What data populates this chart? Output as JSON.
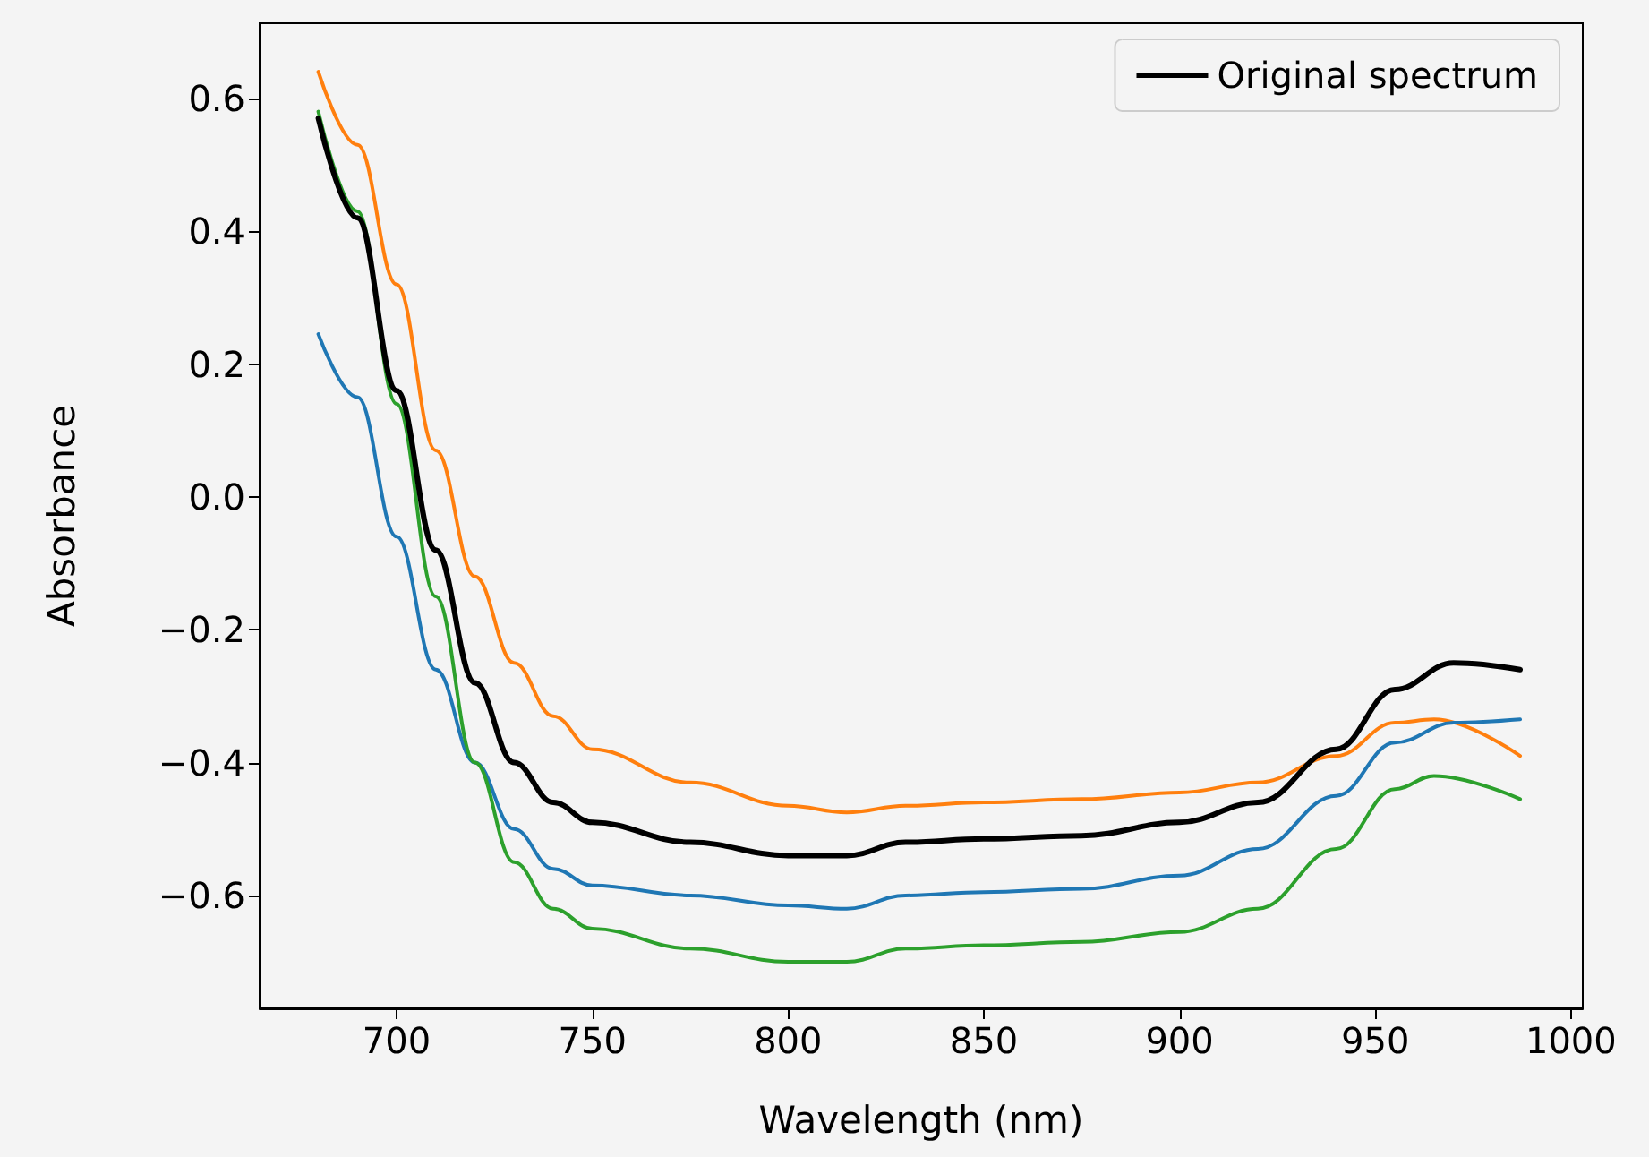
{
  "chart_data": {
    "type": "line",
    "xlabel": "Wavelength (nm)",
    "ylabel": "Absorbance",
    "xlim": [
      665,
      1003
    ],
    "ylim": [
      -0.77,
      0.713
    ],
    "xticks": [
      700,
      750,
      800,
      850,
      900,
      950,
      1000
    ],
    "yticks": [
      {
        "value": -0.6,
        "label": "−0.6"
      },
      {
        "value": -0.4,
        "label": "−0.4"
      },
      {
        "value": -0.2,
        "label": "−0.2"
      },
      {
        "value": 0,
        "label": "0.0"
      },
      0.2,
      0.4,
      0.6
    ],
    "grid": false,
    "legend": "top right",
    "marker": "none",
    "line_style": "solid",
    "series": [
      {
        "color": "#ff7f0e",
        "x": [
          680,
          690,
          700,
          710,
          720,
          730,
          740,
          750,
          775,
          800,
          815,
          830,
          850,
          875,
          900,
          920,
          940,
          955,
          965,
          987
        ],
        "values": [
          0.64,
          0.53,
          0.32,
          0.07,
          -0.12,
          -0.25,
          -0.33,
          -0.38,
          -0.43,
          -0.465,
          -0.475,
          -0.465,
          -0.46,
          -0.455,
          -0.445,
          -0.43,
          -0.39,
          -0.34,
          -0.335,
          -0.39
        ]
      },
      {
        "color": "#1f77b4",
        "x": [
          680,
          690,
          700,
          710,
          720,
          730,
          740,
          750,
          775,
          800,
          815,
          830,
          850,
          875,
          900,
          920,
          940,
          955,
          970,
          987
        ],
        "values": [
          0.245,
          0.15,
          -0.06,
          -0.26,
          -0.4,
          -0.5,
          -0.56,
          -0.585,
          -0.6,
          -0.615,
          -0.62,
          -0.6,
          -0.595,
          -0.59,
          -0.57,
          -0.53,
          -0.45,
          -0.37,
          -0.34,
          -0.335
        ]
      },
      {
        "color": "#2ca02c",
        "x": [
          680,
          690,
          700,
          710,
          720,
          730,
          740,
          750,
          775,
          800,
          815,
          830,
          850,
          875,
          900,
          920,
          940,
          955,
          965,
          987
        ],
        "values": [
          0.58,
          0.43,
          0.14,
          -0.15,
          -0.4,
          -0.55,
          -0.62,
          -0.65,
          -0.68,
          -0.7,
          -0.7,
          -0.68,
          -0.675,
          -0.67,
          -0.655,
          -0.62,
          -0.53,
          -0.44,
          -0.42,
          -0.455
        ]
      },
      {
        "name": "Original spectrum",
        "color": "#000000",
        "x": [
          680,
          690,
          700,
          710,
          720,
          730,
          740,
          750,
          775,
          800,
          815,
          830,
          850,
          875,
          900,
          920,
          940,
          955,
          970,
          987
        ],
        "values": [
          0.57,
          0.42,
          0.16,
          -0.08,
          -0.28,
          -0.4,
          -0.46,
          -0.49,
          -0.52,
          -0.54,
          -0.54,
          -0.52,
          -0.515,
          -0.51,
          -0.49,
          -0.46,
          -0.38,
          -0.29,
          -0.25,
          -0.26
        ]
      }
    ]
  }
}
